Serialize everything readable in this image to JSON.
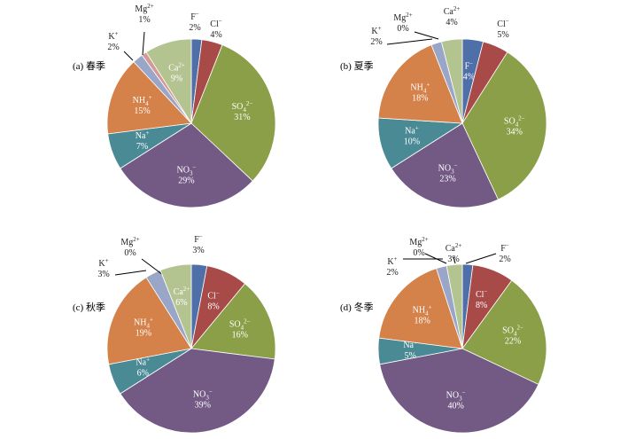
{
  "colors": {
    "F-": "#4f6fa8",
    "Cl-": "#a84a48",
    "SO42-": "#8a9f47",
    "NO3-": "#735a85",
    "Na+": "#4a8a95",
    "NH4+": "#d5814a",
    "K+": "#9aa6c8",
    "Mg2+": "#d59a96",
    "Ca2+": "#b3c491"
  },
  "chart_data": [
    {
      "type": "pie",
      "panel_label": "(a) 春季",
      "slices": [
        {
          "key": "F-",
          "ion": "F",
          "sup": "−",
          "sub": "",
          "value": 2,
          "pct_label": "2%",
          "place": "out"
        },
        {
          "key": "Cl-",
          "ion": "Cl",
          "sup": "−",
          "sub": "",
          "value": 4,
          "pct_label": "4%",
          "place": "out"
        },
        {
          "key": "SO42-",
          "ion": "SO",
          "sup": "2−",
          "sub": "4",
          "value": 31,
          "pct_label": "31%",
          "place": "in"
        },
        {
          "key": "NO3-",
          "ion": "NO",
          "sup": "−",
          "sub": "3",
          "value": 29,
          "pct_label": "29%",
          "place": "in"
        },
        {
          "key": "Na+",
          "ion": "Na",
          "sup": "+",
          "sub": "",
          "value": 7,
          "pct_label": "7%",
          "place": "in"
        },
        {
          "key": "NH4+",
          "ion": "NH",
          "sup": "+",
          "sub": "4",
          "value": 15,
          "pct_label": "15%",
          "place": "in"
        },
        {
          "key": "K+",
          "ion": "K",
          "sup": "+",
          "sub": "",
          "value": 2,
          "pct_label": "2%",
          "place": "out"
        },
        {
          "key": "Mg2+",
          "ion": "Mg",
          "sup": "2+",
          "sub": "",
          "value": 1,
          "pct_label": "1%",
          "place": "out"
        },
        {
          "key": "Ca2+",
          "ion": "Ca",
          "sup": "2+",
          "sub": "",
          "value": 9,
          "pct_label": "9%",
          "place": "in"
        }
      ]
    },
    {
      "type": "pie",
      "panel_label": "(b) 夏季",
      "slices": [
        {
          "key": "F-",
          "ion": "F",
          "sup": "−",
          "sub": "",
          "value": 4,
          "pct_label": "4%",
          "place": "in"
        },
        {
          "key": "Cl-",
          "ion": "Cl",
          "sup": "−",
          "sub": "",
          "value": 5,
          "pct_label": "5%",
          "place": "out"
        },
        {
          "key": "SO42-",
          "ion": "SO",
          "sup": "2−",
          "sub": "4",
          "value": 34,
          "pct_label": "34%",
          "place": "in"
        },
        {
          "key": "NO3-",
          "ion": "NO",
          "sup": "−",
          "sub": "3",
          "value": 23,
          "pct_label": "23%",
          "place": "in"
        },
        {
          "key": "Na+",
          "ion": "Na",
          "sup": "+",
          "sub": "",
          "value": 10,
          "pct_label": "10%",
          "place": "in"
        },
        {
          "key": "NH4+",
          "ion": "NH",
          "sup": "+",
          "sub": "4",
          "value": 18,
          "pct_label": "18%",
          "place": "in"
        },
        {
          "key": "K+",
          "ion": "K",
          "sup": "+",
          "sub": "",
          "value": 2,
          "pct_label": "2%",
          "place": "out"
        },
        {
          "key": "Mg2+",
          "ion": "Mg",
          "sup": "2+",
          "sub": "",
          "value": 0,
          "pct_label": "0%",
          "place": "out"
        },
        {
          "key": "Ca2+",
          "ion": "Ca",
          "sup": "2+",
          "sub": "",
          "value": 4,
          "pct_label": "4%",
          "place": "out"
        }
      ]
    },
    {
      "type": "pie",
      "panel_label": "(c) 秋季",
      "slices": [
        {
          "key": "F-",
          "ion": "F",
          "sup": "−",
          "sub": "",
          "value": 3,
          "pct_label": "3%",
          "place": "out"
        },
        {
          "key": "Cl-",
          "ion": "Cl",
          "sup": "−",
          "sub": "",
          "value": 8,
          "pct_label": "8%",
          "place": "in"
        },
        {
          "key": "SO42-",
          "ion": "SO",
          "sup": "2−",
          "sub": "4",
          "value": 16,
          "pct_label": "16%",
          "place": "in"
        },
        {
          "key": "NO3-",
          "ion": "NO",
          "sup": "−",
          "sub": "3",
          "value": 39,
          "pct_label": "39%",
          "place": "in"
        },
        {
          "key": "Na+",
          "ion": "Na",
          "sup": "+",
          "sub": "",
          "value": 6,
          "pct_label": "6%",
          "place": "in"
        },
        {
          "key": "NH4+",
          "ion": "NH",
          "sup": "+",
          "sub": "4",
          "value": 19,
          "pct_label": "19%",
          "place": "in"
        },
        {
          "key": "K+",
          "ion": "K",
          "sup": "+",
          "sub": "",
          "value": 3,
          "pct_label": "3%",
          "place": "out"
        },
        {
          "key": "Mg2+",
          "ion": "Mg",
          "sup": "2+",
          "sub": "",
          "value": 0,
          "pct_label": "0%",
          "place": "out"
        },
        {
          "key": "Ca2+",
          "ion": "Ca",
          "sup": "2+",
          "sub": "",
          "value": 6,
          "pct_label": "6%",
          "place": "in"
        }
      ]
    },
    {
      "type": "pie",
      "panel_label": "(d) 冬季",
      "slices": [
        {
          "key": "F-",
          "ion": "F",
          "sup": "−",
          "sub": "",
          "value": 2,
          "pct_label": "2%",
          "place": "out"
        },
        {
          "key": "Cl-",
          "ion": "Cl",
          "sup": "−",
          "sub": "",
          "value": 8,
          "pct_label": "8%",
          "place": "in"
        },
        {
          "key": "SO42-",
          "ion": "SO",
          "sup": "2−",
          "sub": "4",
          "value": 22,
          "pct_label": "22%",
          "place": "in"
        },
        {
          "key": "NO3-",
          "ion": "NO",
          "sup": "−",
          "sub": "3",
          "value": 40,
          "pct_label": "40%",
          "place": "in"
        },
        {
          "key": "Na+",
          "ion": "Na",
          "sup": "+",
          "sub": "",
          "value": 5,
          "pct_label": "5%",
          "place": "in"
        },
        {
          "key": "NH4+",
          "ion": "NH",
          "sup": "+",
          "sub": "4",
          "value": 18,
          "pct_label": "18%",
          "place": "in"
        },
        {
          "key": "K+",
          "ion": "K",
          "sup": "+",
          "sub": "",
          "value": 2,
          "pct_label": "2%",
          "place": "out"
        },
        {
          "key": "Mg2+",
          "ion": "Mg",
          "sup": "2+",
          "sub": "",
          "value": 0,
          "pct_label": "0%",
          "place": "out"
        },
        {
          "key": "Ca2+",
          "ion": "Ca",
          "sup": "2+",
          "sub": "",
          "value": 3,
          "pct_label": "3%",
          "place": "out"
        }
      ]
    }
  ]
}
